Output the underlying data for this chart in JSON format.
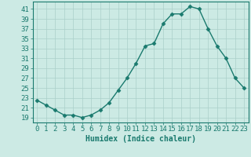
{
  "x": [
    0,
    1,
    2,
    3,
    4,
    5,
    6,
    7,
    8,
    9,
    10,
    11,
    12,
    13,
    14,
    15,
    16,
    17,
    18,
    19,
    20,
    21,
    22,
    23
  ],
  "y": [
    22.5,
    21.5,
    20.5,
    19.5,
    19.5,
    19.0,
    19.5,
    20.5,
    22.0,
    24.5,
    27.0,
    30.0,
    33.5,
    34.0,
    38.0,
    40.0,
    40.0,
    41.5,
    41.0,
    37.0,
    33.5,
    31.0,
    27.0,
    25.0
  ],
  "line_color": "#1a7a6e",
  "marker": "D",
  "markersize": 2.5,
  "linewidth": 1.0,
  "background_color": "#cceae4",
  "grid_color": "#aacfc9",
  "xlabel": "Humidex (Indice chaleur)",
  "xlabel_fontsize": 7,
  "ylabel_ticks": [
    19,
    21,
    23,
    25,
    27,
    29,
    31,
    33,
    35,
    37,
    39,
    41
  ],
  "ylim": [
    18.0,
    42.5
  ],
  "xlim": [
    -0.5,
    23.5
  ],
  "tick_fontsize": 6.5,
  "tick_color": "#1a7a6e",
  "axis_color": "#1a7a6e"
}
